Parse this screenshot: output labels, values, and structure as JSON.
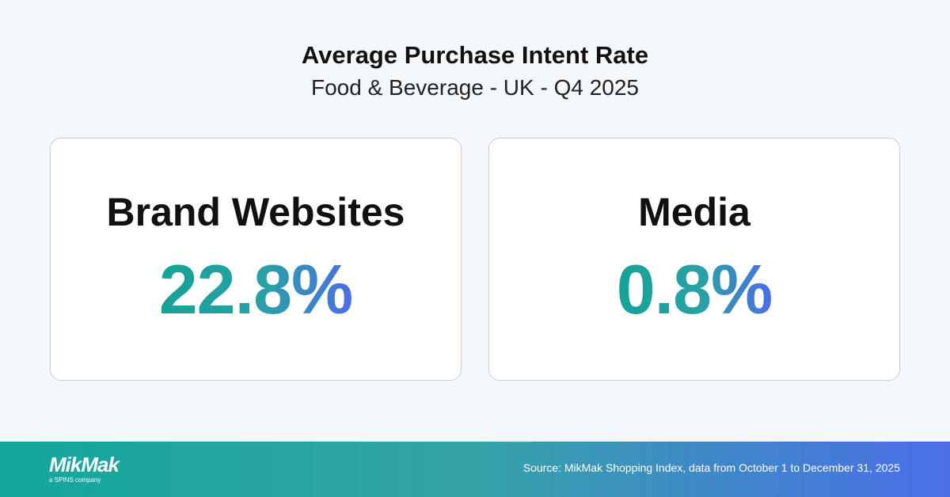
{
  "header": {
    "title": "Average Purchase Intent Rate",
    "subtitle": "Food & Beverage - UK - Q4 2025"
  },
  "cards": [
    {
      "label": "Brand Websites",
      "value": "22.8%"
    },
    {
      "label": "Media",
      "value": "0.8%"
    }
  ],
  "footer": {
    "logo": "MikMak",
    "tagline": "a SPINS company",
    "source": "Source: MikMak Shopping Index, data from October 1 to December 31, 2025"
  }
}
